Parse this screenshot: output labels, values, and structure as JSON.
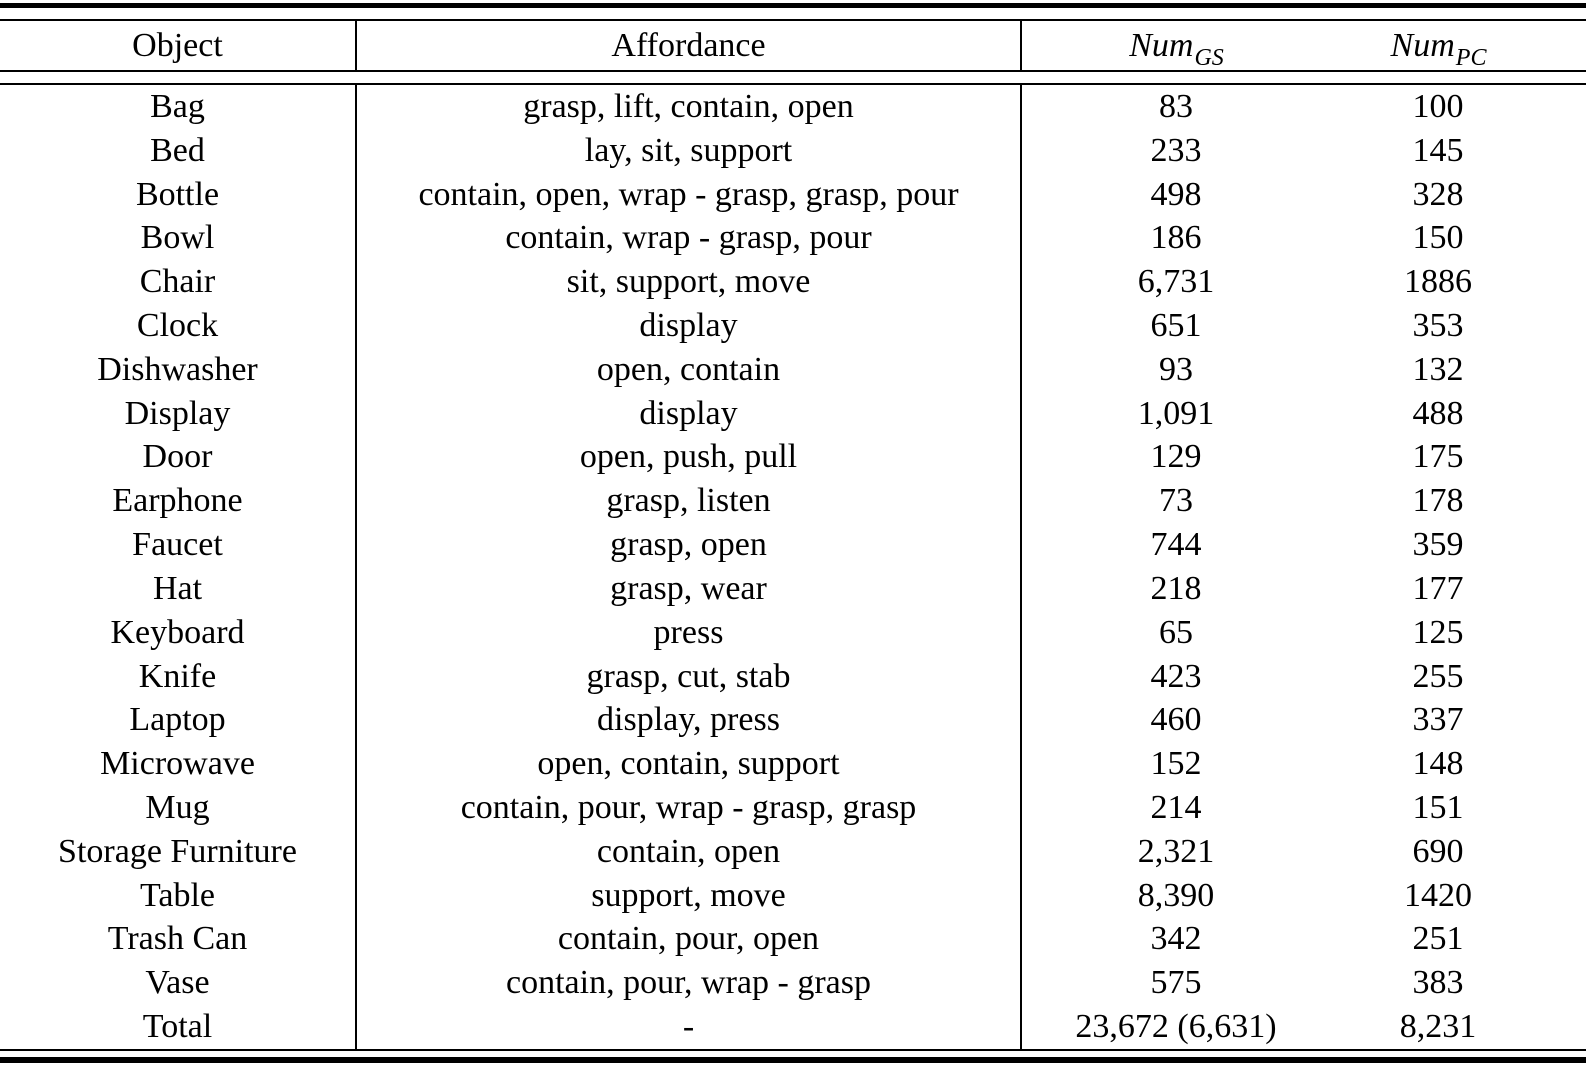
{
  "table": {
    "header": {
      "object": "Object",
      "affordance": "Affordance",
      "num_gs_base": "Num",
      "num_gs_sub": "GS",
      "num_pc_base": "Num",
      "num_pc_sub": "PC"
    },
    "rows": [
      {
        "object": "Bag",
        "affordance": "grasp, lift, contain, open",
        "num_gs": "83",
        "num_pc": "100"
      },
      {
        "object": "Bed",
        "affordance": "lay, sit, support",
        "num_gs": "233",
        "num_pc": "145"
      },
      {
        "object": "Bottle",
        "affordance": "contain, open, wrap - grasp, grasp, pour",
        "num_gs": "498",
        "num_pc": "328"
      },
      {
        "object": "Bowl",
        "affordance": "contain, wrap - grasp, pour",
        "num_gs": "186",
        "num_pc": "150"
      },
      {
        "object": "Chair",
        "affordance": "sit, support, move",
        "num_gs": "6,731",
        "num_pc": "1886"
      },
      {
        "object": "Clock",
        "affordance": "display",
        "num_gs": "651",
        "num_pc": "353"
      },
      {
        "object": "Dishwasher",
        "affordance": "open, contain",
        "num_gs": "93",
        "num_pc": "132"
      },
      {
        "object": "Display",
        "affordance": "display",
        "num_gs": "1,091",
        "num_pc": "488"
      },
      {
        "object": "Door",
        "affordance": "open, push, pull",
        "num_gs": "129",
        "num_pc": "175"
      },
      {
        "object": "Earphone",
        "affordance": "grasp, listen",
        "num_gs": "73",
        "num_pc": "178"
      },
      {
        "object": "Faucet",
        "affordance": "grasp, open",
        "num_gs": "744",
        "num_pc": "359"
      },
      {
        "object": "Hat",
        "affordance": "grasp, wear",
        "num_gs": "218",
        "num_pc": "177"
      },
      {
        "object": "Keyboard",
        "affordance": "press",
        "num_gs": "65",
        "num_pc": "125"
      },
      {
        "object": "Knife",
        "affordance": "grasp, cut, stab",
        "num_gs": "423",
        "num_pc": "255"
      },
      {
        "object": "Laptop",
        "affordance": "display, press",
        "num_gs": "460",
        "num_pc": "337"
      },
      {
        "object": "Microwave",
        "affordance": "open, contain, support",
        "num_gs": "152",
        "num_pc": "148"
      },
      {
        "object": "Mug",
        "affordance": "contain, pour, wrap - grasp, grasp",
        "num_gs": "214",
        "num_pc": "151"
      },
      {
        "object": "Storage Furniture",
        "affordance": "contain, open",
        "num_gs": "2,321",
        "num_pc": "690"
      },
      {
        "object": "Table",
        "affordance": "support, move",
        "num_gs": "8,390",
        "num_pc": "1420"
      },
      {
        "object": "Trash Can",
        "affordance": "contain, pour, open",
        "num_gs": "342",
        "num_pc": "251"
      },
      {
        "object": "Vase",
        "affordance": "contain, pour, wrap - grasp",
        "num_gs": "575",
        "num_pc": "383"
      },
      {
        "object": "Total",
        "affordance": "-",
        "num_gs": "23,672 (6,631)",
        "num_pc": "8,231"
      }
    ]
  }
}
